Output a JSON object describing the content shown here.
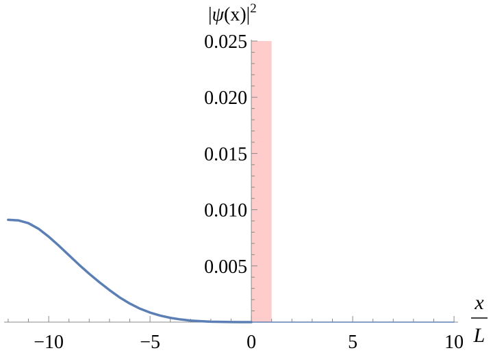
{
  "chart_data": {
    "type": "line",
    "title": "",
    "ylabel_parts": {
      "open": "|",
      "psi": "ψ",
      "arg": "(x)",
      "close": "|",
      "power": "2"
    },
    "xlabel_parts": {
      "numerator": "x",
      "denominator": "L"
    },
    "xlim": [
      -12.2,
      10.2
    ],
    "ylim": [
      0,
      0.025
    ],
    "x_ticks": [
      -10,
      -5,
      0,
      5,
      10
    ],
    "x_tick_labels": [
      "−10",
      "−5",
      "0",
      "5",
      "10"
    ],
    "y_ticks": [
      0.005,
      0.01,
      0.015,
      0.02,
      0.025
    ],
    "y_tick_labels": [
      "0.005",
      "0.010",
      "0.015",
      "0.020",
      "0.025"
    ],
    "barrier": {
      "x_start": 0,
      "x_end": 1,
      "height": 0.025,
      "color": "#ffcccc"
    },
    "series": [
      {
        "color": "#5b7fb5",
        "x": [
          -12,
          -11.5,
          -11,
          -10.5,
          -10,
          -9.5,
          -9,
          -8.5,
          -8,
          -7.5,
          -7,
          -6.5,
          -6,
          -5.5,
          -5,
          -4.5,
          -4,
          -3.5,
          -3,
          -2.5,
          -2,
          -1.5,
          -1,
          -0.5,
          0
        ],
        "y": [
          0.0091,
          0.00905,
          0.0088,
          0.0083,
          0.0076,
          0.0068,
          0.00595,
          0.0051,
          0.0043,
          0.00355,
          0.00285,
          0.0022,
          0.00165,
          0.0012,
          0.00085,
          0.00058,
          0.00038,
          0.00024,
          0.00014,
          8e-05,
          4e-05,
          2e-05,
          1e-05,
          3e-06,
          0
        ]
      },
      {
        "color": "#5b7fb5",
        "x": [
          0,
          10
        ],
        "y": [
          0,
          0
        ]
      }
    ],
    "grid": false,
    "legend": "none"
  }
}
